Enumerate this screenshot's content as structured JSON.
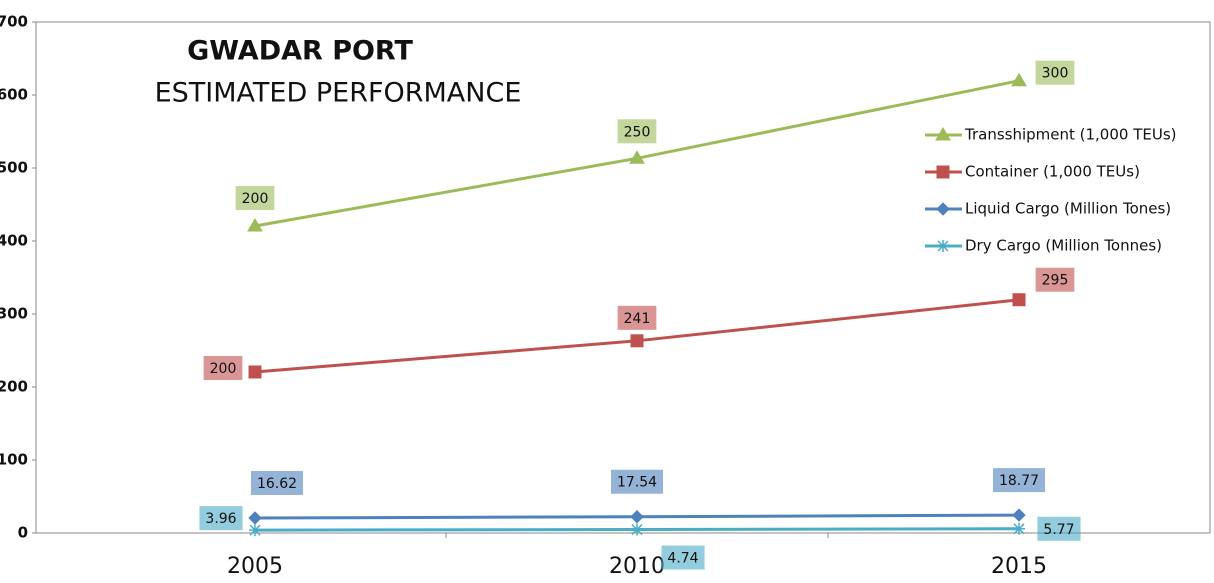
{
  "chart_data": {
    "type": "line",
    "stacked": true,
    "title": "GWADAR PORT",
    "subtitle": "ESTIMATED PERFORMANCE",
    "categories": [
      "2005",
      "2010",
      "2015"
    ],
    "series": [
      {
        "name": "Transshipment (1,000 TEUs)",
        "color": "#9bbb59",
        "marker": "triangle",
        "values": [
          200,
          250,
          300
        ]
      },
      {
        "name": "Container (1,000 TEUs)",
        "color": "#c0504d",
        "marker": "square",
        "values": [
          200,
          241,
          295
        ]
      },
      {
        "name": "Liquid Cargo (Million Tones)",
        "color": "#4f81bd",
        "marker": "diamond",
        "values": [
          16.62,
          17.54,
          18.77
        ]
      },
      {
        "name": "Dry Cargo (Million Tonnes)",
        "color": "#4bacc6",
        "marker": "asterisk",
        "values": [
          3.96,
          4.74,
          5.77
        ]
      }
    ],
    "ylim": [
      0,
      700
    ],
    "yticks": [
      0,
      100,
      200,
      300,
      400,
      500,
      600,
      700
    ],
    "grid": false,
    "legend": "right"
  }
}
